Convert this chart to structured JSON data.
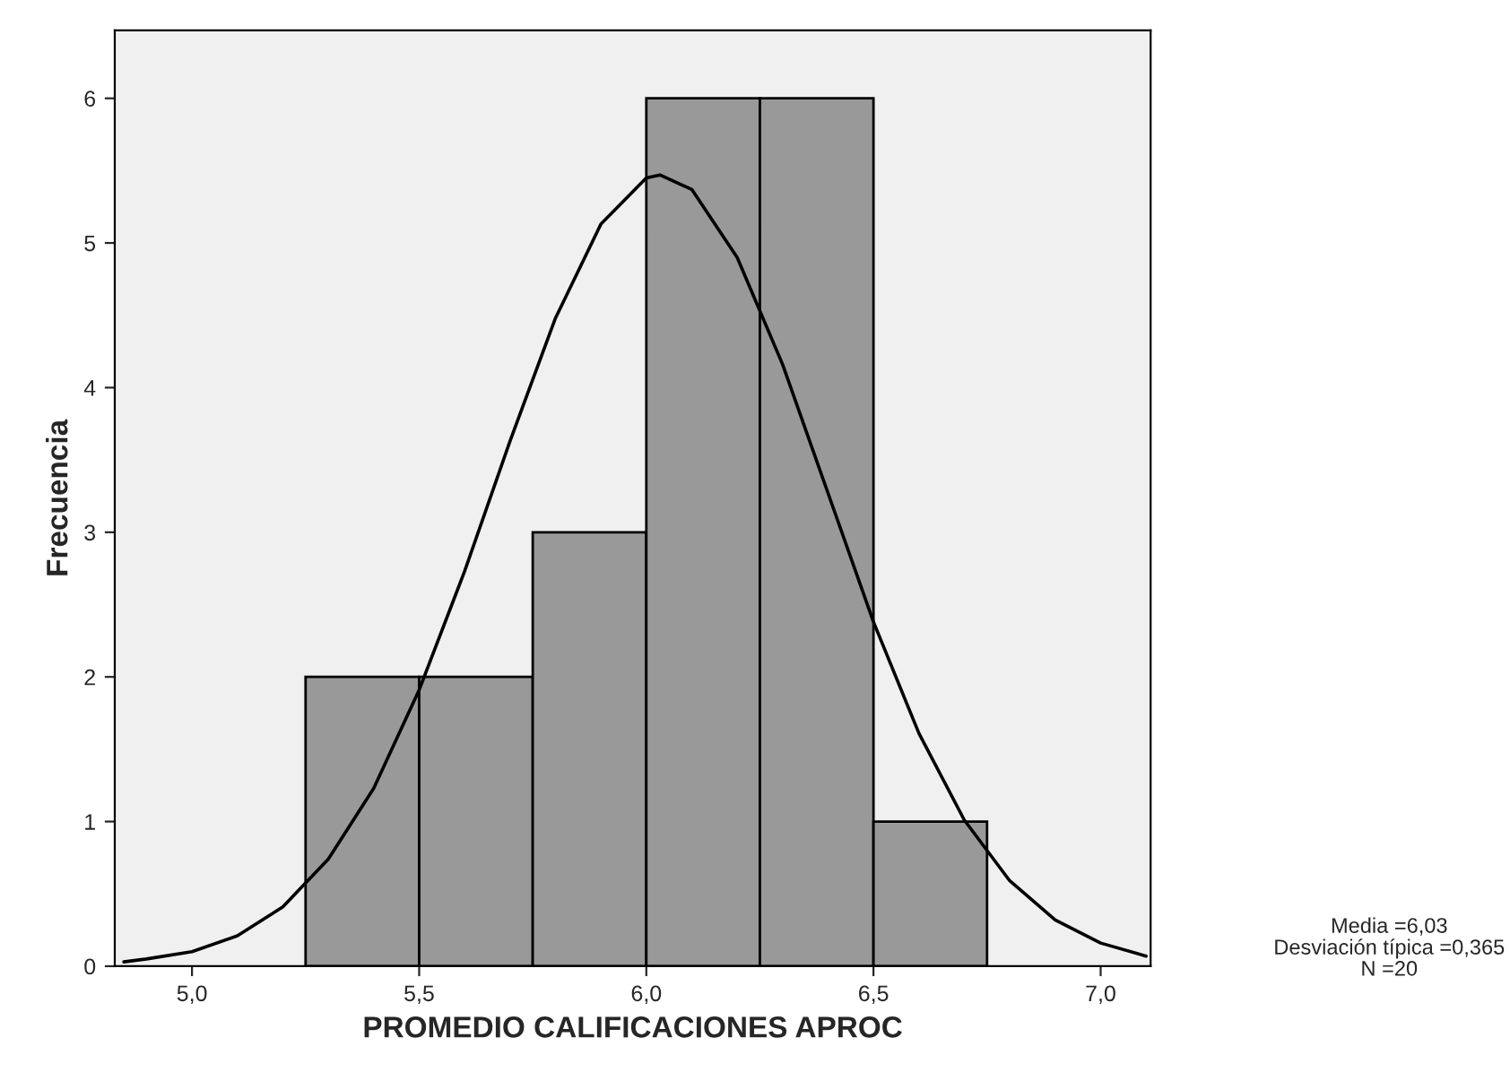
{
  "chart_data": {
    "type": "histogram",
    "xlabel": "PROMEDIO CALIFICACIONES APROC",
    "ylabel": "Frecuencia",
    "bins": [
      5.25,
      5.5,
      5.75,
      6.0,
      6.25,
      6.5,
      6.75
    ],
    "values": [
      2,
      2,
      3,
      6,
      6,
      1
    ],
    "color": "#999999",
    "series": [
      {
        "type": "line",
        "color": "#000000",
        "x": [
          4.85,
          4.9,
          5.0,
          5.1,
          5.2,
          5.3,
          5.4,
          5.5,
          5.6,
          5.7,
          5.8,
          5.9,
          6.0,
          6.03,
          6.1,
          6.2,
          6.3,
          6.4,
          6.5,
          6.6,
          6.7,
          6.8,
          6.9,
          7.0,
          7.1
        ],
        "values": [
          0.03,
          0.05,
          0.1,
          0.21,
          0.41,
          0.74,
          1.23,
          1.91,
          2.73,
          3.63,
          4.48,
          5.13,
          5.45,
          5.47,
          5.37,
          4.9,
          4.16,
          3.27,
          2.38,
          1.61,
          1.01,
          0.59,
          0.32,
          0.16,
          0.07
        ]
      }
    ],
    "xlim": [
      4.83,
      7.11
    ],
    "xticks": [
      {
        "value": 5.0,
        "label": "5,0"
      },
      {
        "value": 5.5,
        "label": "5,5"
      },
      {
        "value": 6.0,
        "label": "6,0"
      },
      {
        "value": 6.5,
        "label": "6,5"
      },
      {
        "value": 7.0,
        "label": "7,0"
      }
    ],
    "ylim": [
      0,
      6.47
    ],
    "yticks": [
      0,
      1,
      2,
      3,
      4,
      5,
      6
    ],
    "grid": false,
    "legend": false,
    "annotations": [
      "Media =6,03",
      "Desviación típica =0,365",
      "N =20"
    ]
  }
}
